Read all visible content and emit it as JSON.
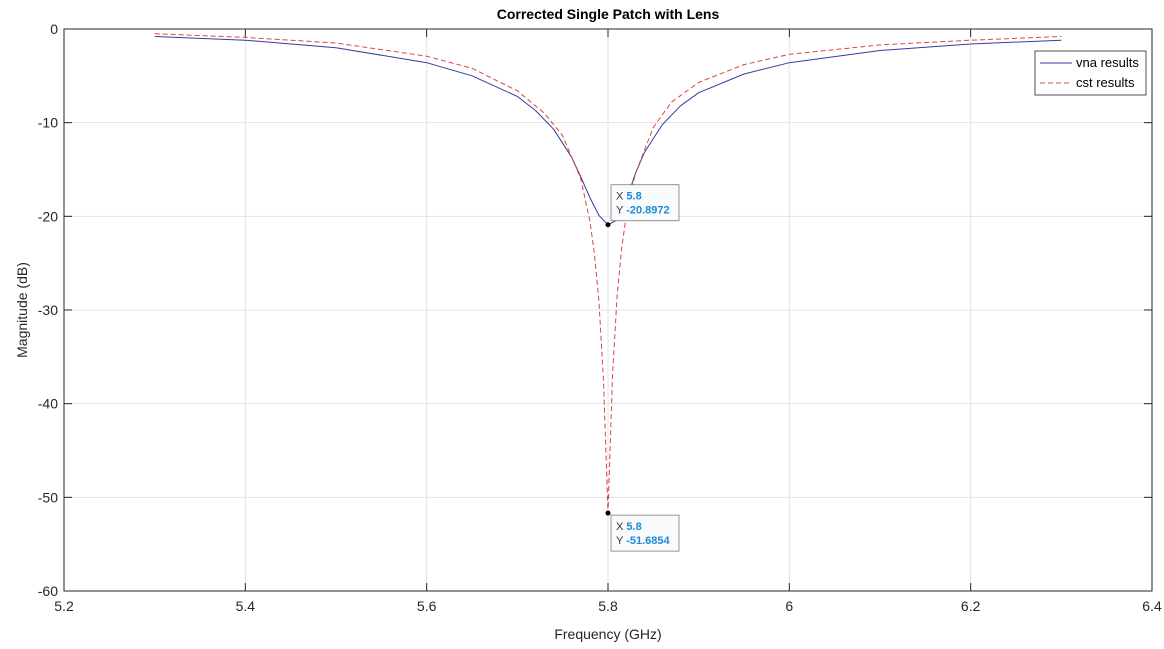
{
  "chart_data": {
    "type": "line",
    "title": "Corrected Single Patch with Lens",
    "xlabel": "Frequency (GHz)",
    "ylabel": "Magnitude (dB)",
    "xlim": [
      5.2,
      6.4
    ],
    "ylim": [
      -60,
      0
    ],
    "xticks": [
      5.2,
      5.4,
      5.6,
      5.8,
      6,
      6.2,
      6.4
    ],
    "xtick_labels": [
      "5.2",
      "5.4",
      "5.6",
      "5.8",
      "6",
      "6.2",
      "6.4"
    ],
    "yticks": [
      -60,
      -50,
      -40,
      -30,
      -20,
      -10,
      0
    ],
    "ytick_labels": [
      "-60",
      "-50",
      "-40",
      "-30",
      "-20",
      "-10",
      "0"
    ],
    "grid": true,
    "legend_position": "top-right",
    "series": [
      {
        "name": "vna results",
        "color": "#3a3a9c",
        "style": "solid",
        "x": [
          5.3,
          5.4,
          5.5,
          5.6,
          5.65,
          5.7,
          5.72,
          5.74,
          5.76,
          5.77,
          5.78,
          5.79,
          5.8,
          5.81,
          5.82,
          5.83,
          5.84,
          5.86,
          5.88,
          5.9,
          5.95,
          6.0,
          6.1,
          6.2,
          6.3
        ],
        "y": [
          -0.8,
          -1.2,
          -2.0,
          -3.6,
          -5.0,
          -7.2,
          -8.7,
          -10.7,
          -13.7,
          -15.8,
          -18.0,
          -19.9,
          -20.9,
          -20.4,
          -18.3,
          -15.5,
          -13.2,
          -10.2,
          -8.2,
          -6.8,
          -4.8,
          -3.6,
          -2.3,
          -1.6,
          -1.2
        ]
      },
      {
        "name": "cst results",
        "color": "#e0433f",
        "style": "dashed",
        "x": [
          5.3,
          5.4,
          5.5,
          5.6,
          5.65,
          5.7,
          5.73,
          5.75,
          5.77,
          5.78,
          5.785,
          5.79,
          5.795,
          5.8,
          5.805,
          5.81,
          5.815,
          5.82,
          5.83,
          5.85,
          5.87,
          5.9,
          5.95,
          6.0,
          6.1,
          6.2,
          6.3
        ],
        "y": [
          -0.5,
          -0.9,
          -1.5,
          -2.9,
          -4.2,
          -6.6,
          -9.0,
          -11.4,
          -16.0,
          -20.5,
          -24.0,
          -29.0,
          -37.5,
          -51.7,
          -37.0,
          -28.5,
          -23.5,
          -20.0,
          -15.5,
          -10.5,
          -7.8,
          -5.7,
          -3.8,
          -2.7,
          -1.7,
          -1.2,
          -0.8
        ]
      }
    ],
    "datatips": [
      {
        "x": 5.8,
        "y": -20.8972,
        "x_label": "X",
        "y_label": "Y",
        "x_value": "5.8",
        "y_value": "-20.8972"
      },
      {
        "x": 5.8,
        "y": -51.6854,
        "x_label": "X",
        "y_label": "Y",
        "x_value": "5.8",
        "y_value": "-51.6854"
      }
    ]
  }
}
